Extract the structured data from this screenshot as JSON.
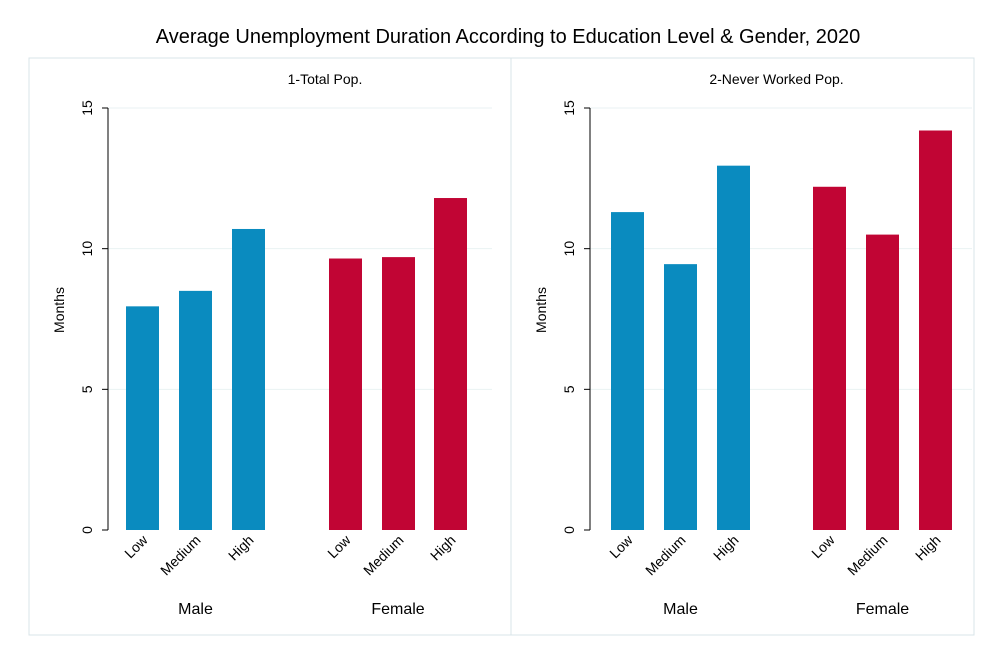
{
  "title": "Average Unemployment Duration According to Education Level & Gender, 2020",
  "colors": {
    "male": "#0a8bbf",
    "female": "#c10534",
    "grid": "#eaf2f3",
    "panel_border": "#d9e4e8"
  },
  "chart_data": [
    {
      "type": "bar",
      "title": "1-Total Pop.",
      "ylabel": "Months",
      "ylim": [
        0,
        15
      ],
      "yticks": [
        0,
        5,
        10,
        15
      ],
      "groups": [
        {
          "name": "Male",
          "categories": [
            "Low",
            "Medium",
            "High"
          ],
          "values": [
            7.95,
            8.5,
            10.7
          ]
        },
        {
          "name": "Female",
          "categories": [
            "Low",
            "Medium",
            "High"
          ],
          "values": [
            9.65,
            9.7,
            11.8
          ]
        }
      ],
      "grid": true
    },
    {
      "type": "bar",
      "title": "2-Never Worked Pop.",
      "ylabel": "Months",
      "ylim": [
        0,
        15
      ],
      "yticks": [
        0,
        5,
        10,
        15
      ],
      "groups": [
        {
          "name": "Male",
          "categories": [
            "Low",
            "Medium",
            "High"
          ],
          "values": [
            11.3,
            9.45,
            12.95
          ]
        },
        {
          "name": "Female",
          "categories": [
            "Low",
            "Medium",
            "High"
          ],
          "values": [
            12.2,
            10.5,
            14.2
          ]
        }
      ],
      "grid": true
    }
  ]
}
